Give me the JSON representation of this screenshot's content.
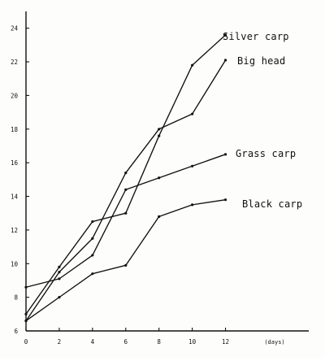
{
  "chart_data": {
    "type": "line",
    "xlabel": "(days)",
    "ylabel": "",
    "xlim": [
      0,
      13
    ],
    "ylim": [
      6,
      25
    ],
    "grid": false,
    "x_ticks": [
      0,
      2,
      4,
      6,
      8,
      10,
      12
    ],
    "y_ticks": [
      6,
      8,
      10,
      12,
      14,
      16,
      18,
      20,
      22,
      24
    ],
    "x_tick_labels": [
      "0",
      "2",
      "4",
      "6",
      "8",
      "10",
      "12"
    ],
    "y_tick_labels": [
      "6",
      "8",
      "10",
      "12",
      "14",
      "16",
      "18",
      "20",
      "22",
      "24"
    ],
    "series": [
      {
        "name": "Silver carp",
        "color": "#111111",
        "x": [
          0,
          2,
          4,
          6,
          8,
          10,
          12
        ],
        "y": [
          7.0,
          9.8,
          12.5,
          13.0,
          17.6,
          21.8,
          23.6
        ]
      },
      {
        "name": "Big head",
        "color": "#111111",
        "x": [
          0,
          2,
          4,
          6,
          8,
          10,
          12
        ],
        "y": [
          6.6,
          9.5,
          11.5,
          15.4,
          18.0,
          18.9,
          22.1
        ]
      },
      {
        "name": "Grass carp",
        "color": "#111111",
        "x": [
          0,
          2,
          4,
          6,
          8,
          10,
          12
        ],
        "y": [
          8.6,
          9.1,
          10.5,
          14.4,
          15.1,
          15.8,
          16.5
        ]
      },
      {
        "name": "Black carp",
        "color": "#111111",
        "x": [
          0,
          2,
          4,
          6,
          8,
          10,
          12
        ],
        "y": [
          6.6,
          8.0,
          9.4,
          9.9,
          12.8,
          13.5,
          13.8
        ]
      }
    ]
  }
}
